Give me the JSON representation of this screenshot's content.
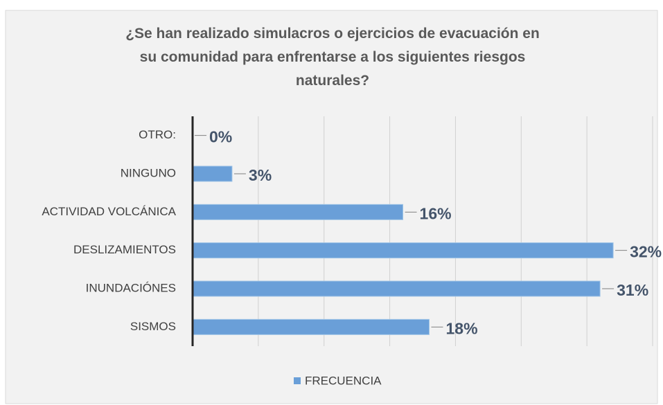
{
  "chart_data": {
    "type": "bar",
    "orientation": "horizontal",
    "title": "¿Se han realizado simulacros o ejercicios de evacuación en su comunidad para enfrentarse a los siguientes riesgos naturales?",
    "categories": [
      "OTRO:",
      "NINGUNO",
      "ACTIVIDAD VOLCÁNICA",
      "DESLIZAMIENTOS",
      "INUNDACIÓNES",
      "SISMOS"
    ],
    "series": [
      {
        "name": "FRECUENCIA",
        "color": "#6a9fd8",
        "values": [
          0,
          3,
          16,
          32,
          31,
          18
        ],
        "value_labels": [
          "0%",
          "3%",
          "16%",
          "32%",
          "31%",
          "18%"
        ]
      }
    ],
    "xlim": [
      0,
      35
    ],
    "xticks": [
      0,
      5,
      10,
      15,
      20,
      25,
      30,
      35
    ],
    "grid": true,
    "legend": "bottom"
  }
}
